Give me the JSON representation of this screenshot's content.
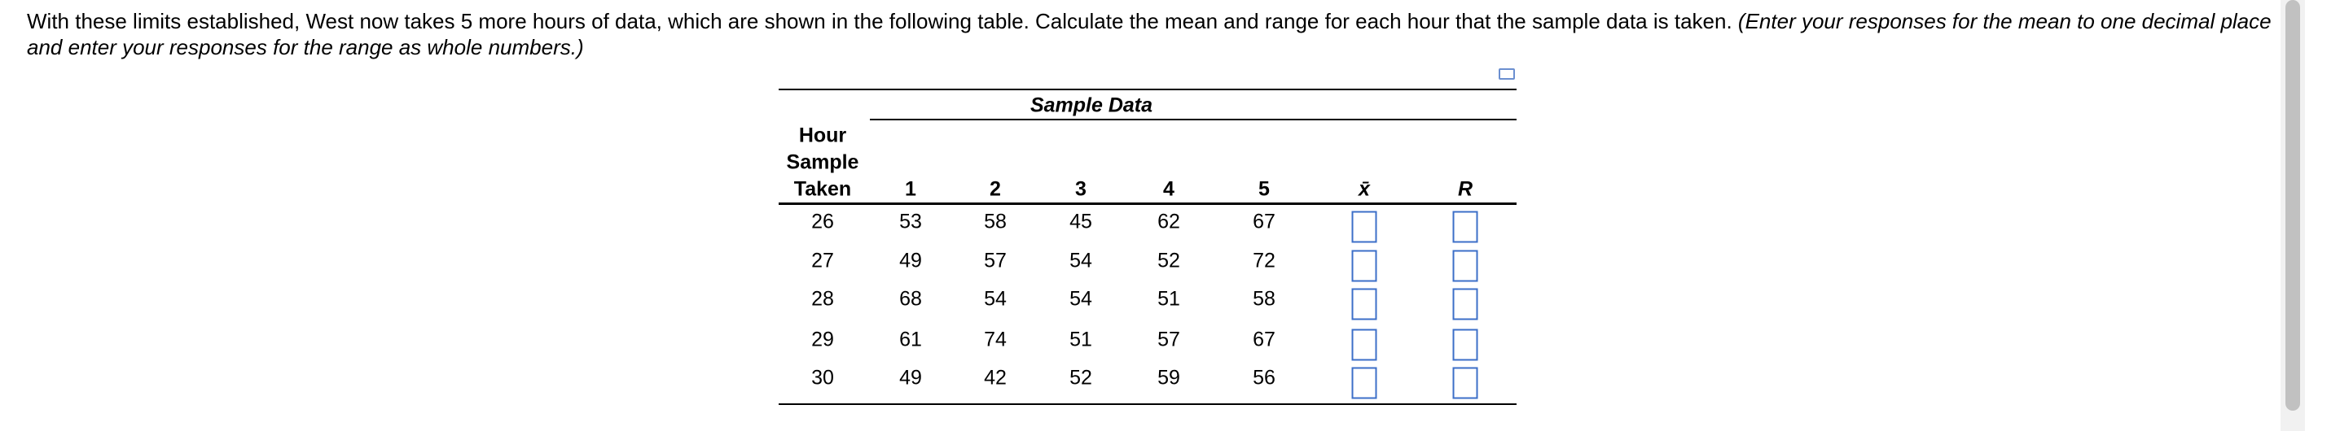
{
  "question": {
    "text": "With these limits established, West now takes 5 more hours of data, which are shown in the following table. Calculate the mean and range for each hour that the sample data is taken.",
    "instruction": "(Enter your responses for the mean to one decimal place and enter your responses for the range as whole numbers.)"
  },
  "table": {
    "group_header": "Sample Data",
    "headers": [
      "Hour Sample Taken",
      "1",
      "2",
      "3",
      "4",
      "5",
      "x̄",
      "R"
    ],
    "rows": [
      [
        "26",
        "53",
        "58",
        "45",
        "62",
        "67"
      ],
      [
        "27",
        "49",
        "57",
        "54",
        "52",
        "72"
      ],
      [
        "28",
        "68",
        "54",
        "54",
        "51",
        "58"
      ],
      [
        "29",
        "61",
        "74",
        "51",
        "57",
        "67"
      ],
      [
        "30",
        "49",
        "42",
        "52",
        "59",
        "56"
      ]
    ]
  }
}
